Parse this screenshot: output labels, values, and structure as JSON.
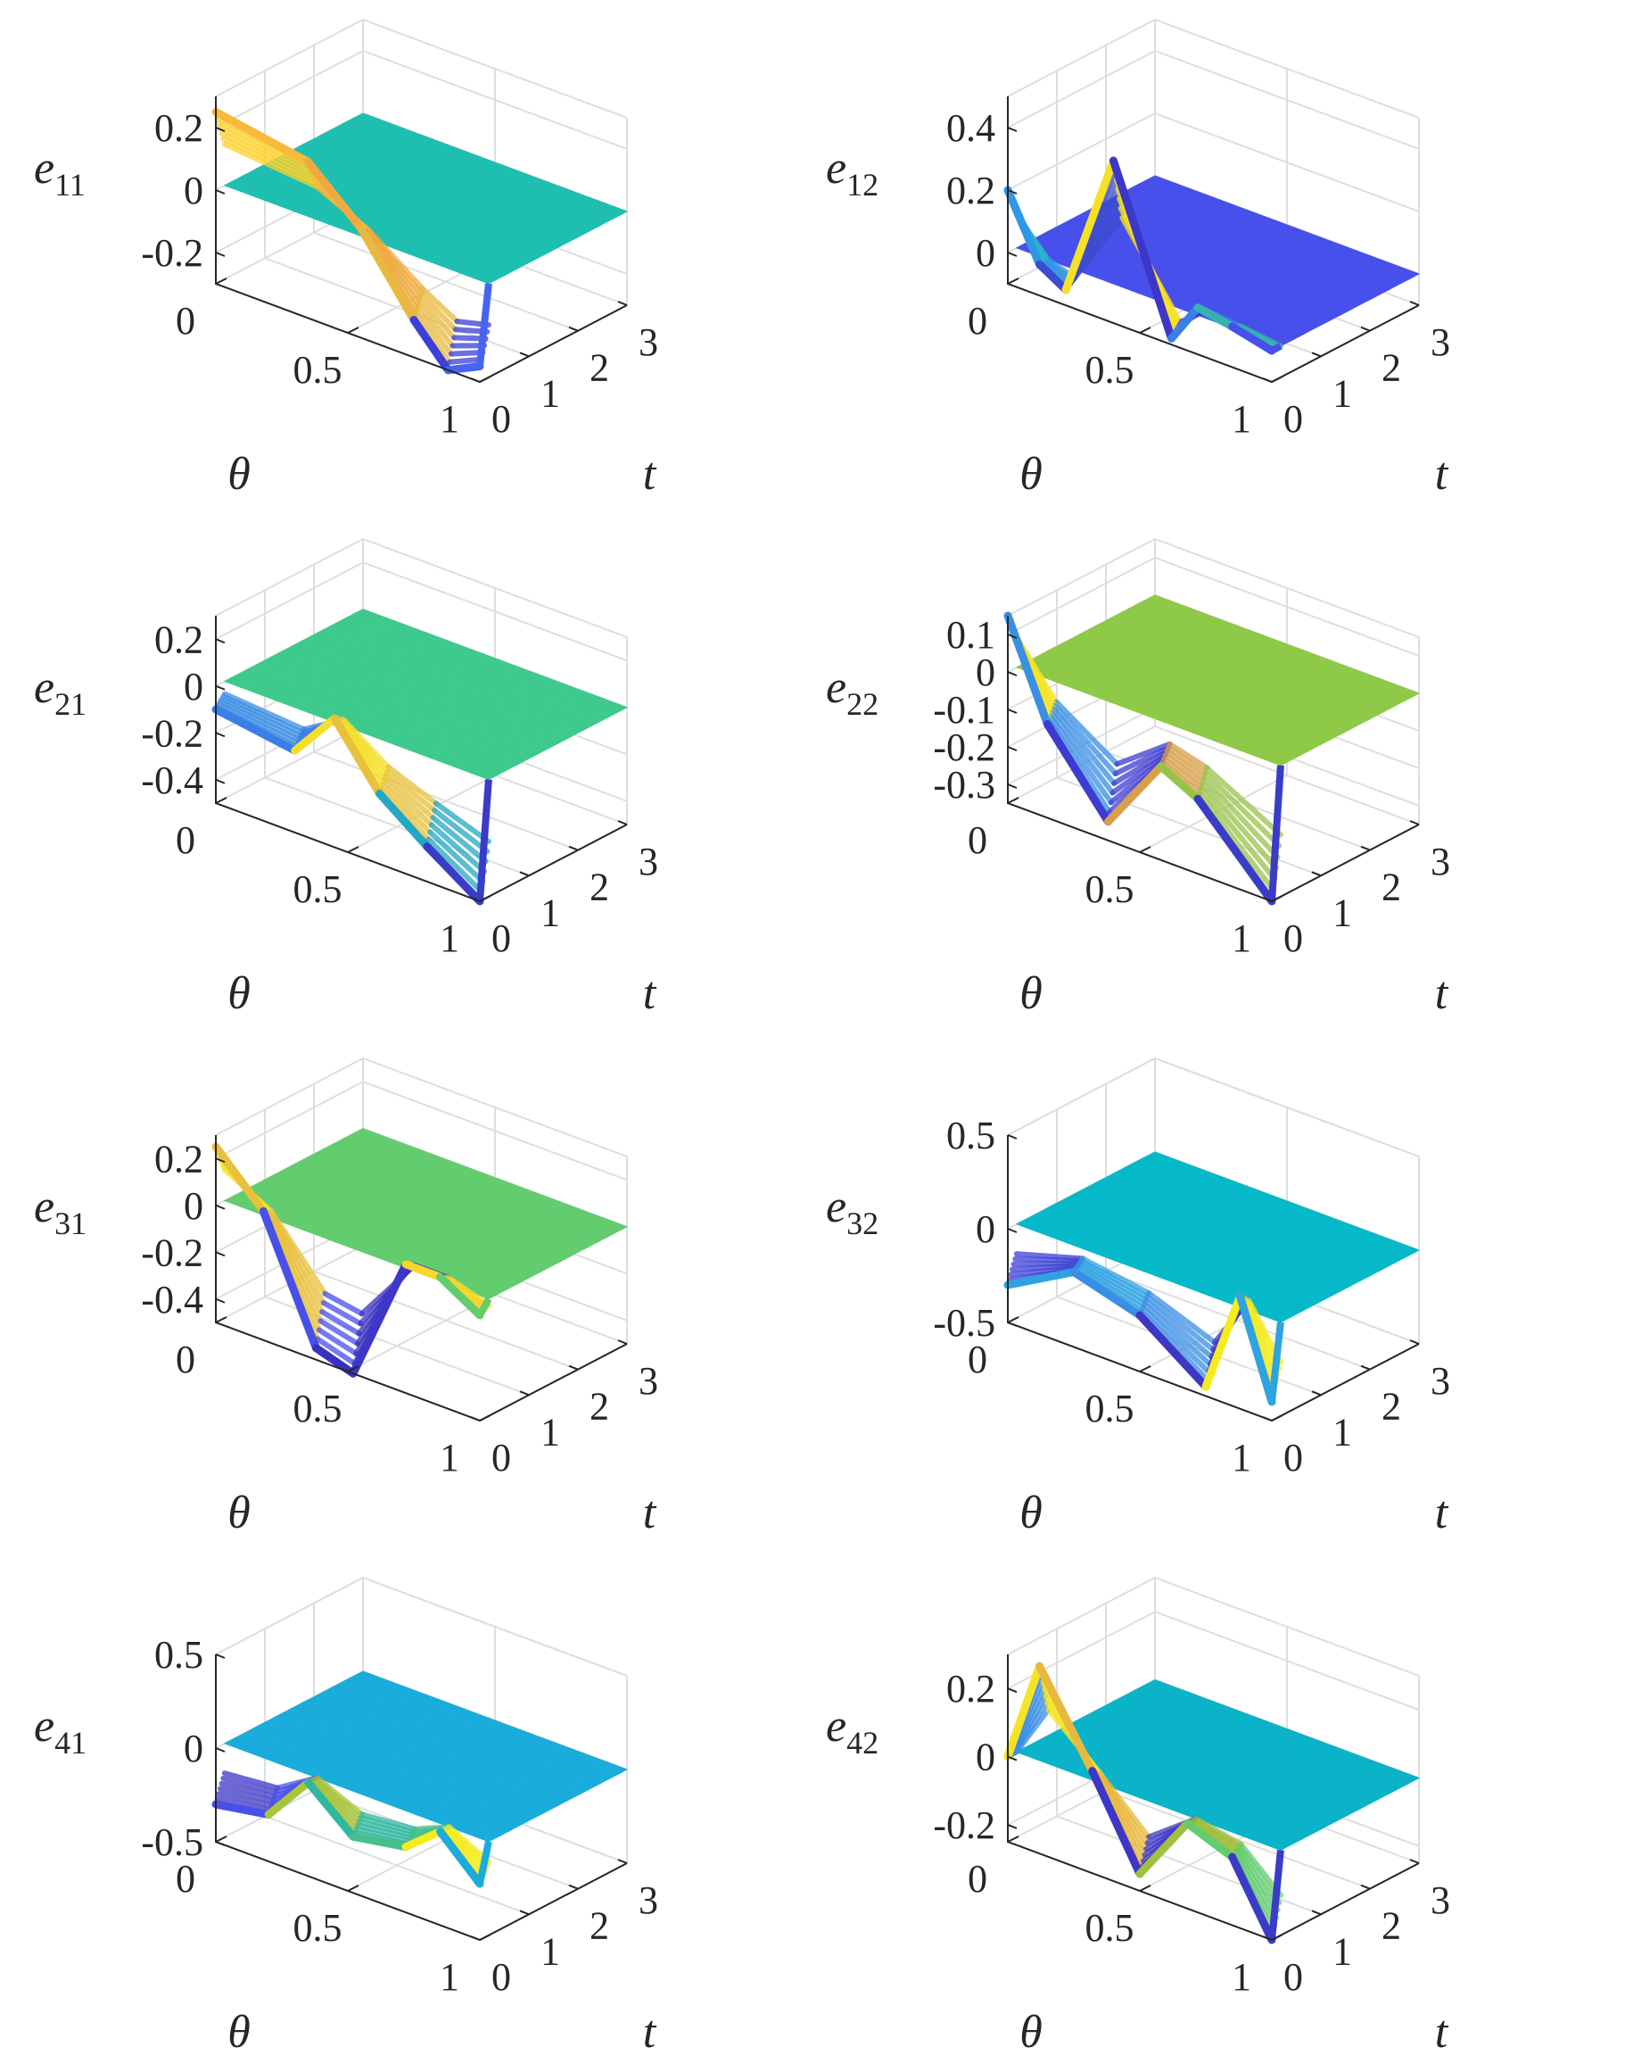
{
  "chart_data": [
    {
      "type": "surface",
      "zlabel": {
        "base": "e",
        "sub": "11"
      },
      "xlabel": "θ",
      "ylabel": "t",
      "theta_ticks": [
        "0",
        "0.5",
        "1"
      ],
      "t_ticks": [
        "0",
        "1",
        "2",
        "3"
      ],
      "z_ticks": [
        {
          "v": 0.2,
          "label": "0.2"
        },
        {
          "v": 0,
          "label": "0"
        },
        {
          "v": -0.2,
          "label": "-0.2"
        }
      ],
      "zlim": [
        -0.3,
        0.3
      ],
      "xlim": [
        0,
        1
      ],
      "ylim": [
        0,
        3
      ],
      "steady_value": 0,
      "steady_color": "#1ebfb1",
      "transient": [
        {
          "theta": 0.0,
          "z": 0.25,
          "color": "#fbd230"
        },
        {
          "theta": 0.35,
          "z": 0.2,
          "color": "#f9b93c"
        },
        {
          "theta": 0.55,
          "z": 0.05,
          "color": "#f0a93f"
        },
        {
          "theta": 0.75,
          "z": -0.18,
          "color": "#e8b93e"
        },
        {
          "theta": 0.88,
          "z": -0.3,
          "color": "#3a40d8"
        },
        {
          "theta": 1.0,
          "z": -0.25,
          "color": "#4764f0"
        }
      ]
    },
    {
      "type": "surface",
      "zlabel": {
        "base": "e",
        "sub": "12"
      },
      "xlabel": "θ",
      "ylabel": "t",
      "theta_ticks": [
        "0",
        "0.5",
        "1"
      ],
      "t_ticks": [
        "0",
        "1",
        "2",
        "3"
      ],
      "z_ticks": [
        {
          "v": 0.4,
          "label": "0.4"
        },
        {
          "v": 0.2,
          "label": "0.2"
        },
        {
          "v": 0,
          "label": "0"
        }
      ],
      "zlim": [
        -0.1,
        0.5
      ],
      "xlim": [
        0,
        1
      ],
      "ylim": [
        0,
        3
      ],
      "steady_value": 0,
      "steady_color": "#4750ea",
      "transient": [
        {
          "theta": 0.0,
          "z": 0.2,
          "color": "#2ab7c6"
        },
        {
          "theta": 0.12,
          "z": 0.0,
          "color": "#3296e6"
        },
        {
          "theta": 0.22,
          "z": -0.05,
          "color": "#3b4cd0"
        },
        {
          "theta": 0.4,
          "z": 0.42,
          "color": "#f6e225"
        },
        {
          "theta": 0.62,
          "z": -0.08,
          "color": "#3d36c6"
        },
        {
          "theta": 0.72,
          "z": 0.05,
          "color": "#3a7ee8"
        },
        {
          "theta": 0.85,
          "z": 0.03,
          "color": "#36b3b0"
        },
        {
          "theta": 1.0,
          "z": 0.0,
          "color": "#4750ea"
        }
      ]
    },
    {
      "type": "surface",
      "zlabel": {
        "base": "e",
        "sub": "21"
      },
      "xlabel": "θ",
      "ylabel": "t",
      "theta_ticks": [
        "0",
        "0.5",
        "1"
      ],
      "t_ticks": [
        "0",
        "1",
        "2",
        "3"
      ],
      "z_ticks": [
        {
          "v": 0.2,
          "label": "0.2"
        },
        {
          "v": 0,
          "label": "0"
        },
        {
          "v": -0.2,
          "label": "-0.2"
        },
        {
          "v": -0.4,
          "label": "-0.4"
        }
      ],
      "zlim": [
        -0.5,
        0.3
      ],
      "xlim": [
        0,
        1
      ],
      "ylim": [
        0,
        3
      ],
      "steady_value": 0,
      "steady_color": "#3ec98d",
      "transient": [
        {
          "theta": 0.0,
          "z": -0.1,
          "color": "#3a8ee4"
        },
        {
          "theta": 0.3,
          "z": -0.15,
          "color": "#3a7ee8"
        },
        {
          "theta": 0.45,
          "z": 0.05,
          "color": "#f5df2a"
        },
        {
          "theta": 0.62,
          "z": -0.2,
          "color": "#e8c03a"
        },
        {
          "theta": 0.8,
          "z": -0.35,
          "color": "#23a8c4"
        },
        {
          "theta": 1.0,
          "z": -0.5,
          "color": "#3a3cc8"
        }
      ]
    },
    {
      "type": "surface",
      "zlabel": {
        "base": "e",
        "sub": "22"
      },
      "xlabel": "θ",
      "ylabel": "t",
      "theta_ticks": [
        "0",
        "0.5",
        "1"
      ],
      "t_ticks": [
        "0",
        "1",
        "2",
        "3"
      ],
      "z_ticks": [
        {
          "v": 0.1,
          "label": "0.1"
        },
        {
          "v": 0,
          "label": "0"
        },
        {
          "v": -0.1,
          "label": "-0.1"
        },
        {
          "v": -0.2,
          "label": "-0.2"
        },
        {
          "v": -0.3,
          "label": "-0.3"
        }
      ],
      "zlim": [
        -0.35,
        0.15
      ],
      "xlim": [
        0,
        1
      ],
      "ylim": [
        0,
        3
      ],
      "steady_value": 0,
      "steady_color": "#8ec947",
      "transient": [
        {
          "theta": 0.0,
          "z": 0.15,
          "color": "#f5e426"
        },
        {
          "theta": 0.15,
          "z": -0.1,
          "color": "#3a8ee4"
        },
        {
          "theta": 0.38,
          "z": -0.3,
          "color": "#3e3cd0"
        },
        {
          "theta": 0.58,
          "z": -0.1,
          "color": "#d8a04a"
        },
        {
          "theta": 0.72,
          "z": -0.15,
          "color": "#9ac24a"
        },
        {
          "theta": 1.0,
          "z": -0.35,
          "color": "#3a3cc8"
        }
      ]
    },
    {
      "type": "surface",
      "zlabel": {
        "base": "e",
        "sub": "31"
      },
      "xlabel": "θ",
      "ylabel": "t",
      "theta_ticks": [
        "0",
        "0.5",
        "1"
      ],
      "t_ticks": [
        "0",
        "1",
        "2",
        "3"
      ],
      "z_ticks": [
        {
          "v": 0.2,
          "label": "0.2"
        },
        {
          "v": 0,
          "label": "0"
        },
        {
          "v": -0.2,
          "label": "-0.2"
        },
        {
          "v": -0.4,
          "label": "-0.4"
        }
      ],
      "zlim": [
        -0.5,
        0.3
      ],
      "xlim": [
        0,
        1
      ],
      "ylim": [
        0,
        3
      ],
      "steady_value": 0,
      "steady_color": "#62cc6f",
      "transient": [
        {
          "theta": 0.0,
          "z": 0.25,
          "color": "#f5e426"
        },
        {
          "theta": 0.18,
          "z": 0.05,
          "color": "#e8c03a"
        },
        {
          "theta": 0.38,
          "z": -0.45,
          "color": "#4750ea"
        },
        {
          "theta": 0.52,
          "z": -0.5,
          "color": "#3a30c0"
        },
        {
          "theta": 0.72,
          "z": 0.05,
          "color": "#3d36c6"
        },
        {
          "theta": 0.85,
          "z": 0.05,
          "color": "#f6d72a"
        },
        {
          "theta": 1.0,
          "z": -0.05,
          "color": "#62cc6f"
        }
      ]
    },
    {
      "type": "surface",
      "zlabel": {
        "base": "e",
        "sub": "32"
      },
      "xlabel": "θ",
      "ylabel": "t",
      "theta_ticks": [
        "0",
        "0.5",
        "1"
      ],
      "t_ticks": [
        "0",
        "1",
        "2",
        "3"
      ],
      "z_ticks": [
        {
          "v": 0.5,
          "label": "0.5"
        },
        {
          "v": 0,
          "label": "0"
        },
        {
          "v": -0.5,
          "label": "-0.5"
        }
      ],
      "zlim": [
        -0.5,
        0.5
      ],
      "xlim": [
        0,
        1
      ],
      "ylim": [
        0,
        3
      ],
      "steady_value": 0,
      "steady_color": "#06b9c8",
      "transient": [
        {
          "theta": 0.0,
          "z": -0.3,
          "color": "#3a40d8"
        },
        {
          "theta": 0.25,
          "z": -0.1,
          "color": "#2fa3e2"
        },
        {
          "theta": 0.5,
          "z": -0.2,
          "color": "#3a8ee4"
        },
        {
          "theta": 0.75,
          "z": -0.45,
          "color": "#3d36c6"
        },
        {
          "theta": 0.88,
          "z": 0.1,
          "color": "#f5ec20"
        },
        {
          "theta": 1.0,
          "z": -0.4,
          "color": "#2fa3e2"
        }
      ]
    },
    {
      "type": "surface",
      "zlabel": {
        "base": "e",
        "sub": "41"
      },
      "xlabel": "θ",
      "ylabel": "t",
      "theta_ticks": [
        "0",
        "0.5",
        "1"
      ],
      "t_ticks": [
        "0",
        "1",
        "2",
        "3"
      ],
      "z_ticks": [
        {
          "v": 0.5,
          "label": "0.5"
        },
        {
          "v": 0,
          "label": "0"
        },
        {
          "v": -0.5,
          "label": "-0.5"
        }
      ],
      "zlim": [
        -0.5,
        0.5
      ],
      "xlim": [
        0,
        1
      ],
      "ylim": [
        0,
        3
      ],
      "steady_value": 0,
      "steady_color": "#1aacdb",
      "transient": [
        {
          "theta": 0.0,
          "z": -0.3,
          "color": "#3d36c6"
        },
        {
          "theta": 0.2,
          "z": -0.25,
          "color": "#4750ea"
        },
        {
          "theta": 0.35,
          "z": 0.0,
          "color": "#a8c43c"
        },
        {
          "theta": 0.52,
          "z": -0.2,
          "color": "#2fb7a0"
        },
        {
          "theta": 0.72,
          "z": -0.15,
          "color": "#46c08a"
        },
        {
          "theta": 0.85,
          "z": 0.0,
          "color": "#f5ec20"
        },
        {
          "theta": 1.0,
          "z": -0.2,
          "color": "#1aacdb"
        }
      ]
    },
    {
      "type": "surface",
      "zlabel": {
        "base": "e",
        "sub": "42"
      },
      "xlabel": "θ",
      "ylabel": "t",
      "theta_ticks": [
        "0",
        "0.5",
        "1"
      ],
      "t_ticks": [
        "0",
        "1",
        "2",
        "3"
      ],
      "z_ticks": [
        {
          "v": 0.2,
          "label": "0.2"
        },
        {
          "v": 0,
          "label": "0"
        },
        {
          "v": -0.2,
          "label": "-0.2"
        }
      ],
      "zlim": [
        -0.25,
        0.3
      ],
      "xlim": [
        0,
        1
      ],
      "ylim": [
        0,
        3
      ],
      "steady_value": 0,
      "steady_color": "#0ab3c8",
      "transient": [
        {
          "theta": 0.0,
          "z": 0.0,
          "color": "#3a8ee4"
        },
        {
          "theta": 0.12,
          "z": 0.3,
          "color": "#f5e426"
        },
        {
          "theta": 0.32,
          "z": 0.05,
          "color": "#e8b93e"
        },
        {
          "theta": 0.5,
          "z": -0.2,
          "color": "#3d36c6"
        },
        {
          "theta": 0.68,
          "z": 0.0,
          "color": "#a0c040"
        },
        {
          "theta": 0.85,
          "z": -0.05,
          "color": "#62cc6f"
        },
        {
          "theta": 1.0,
          "z": -0.25,
          "color": "#3a3cc8"
        }
      ]
    }
  ]
}
